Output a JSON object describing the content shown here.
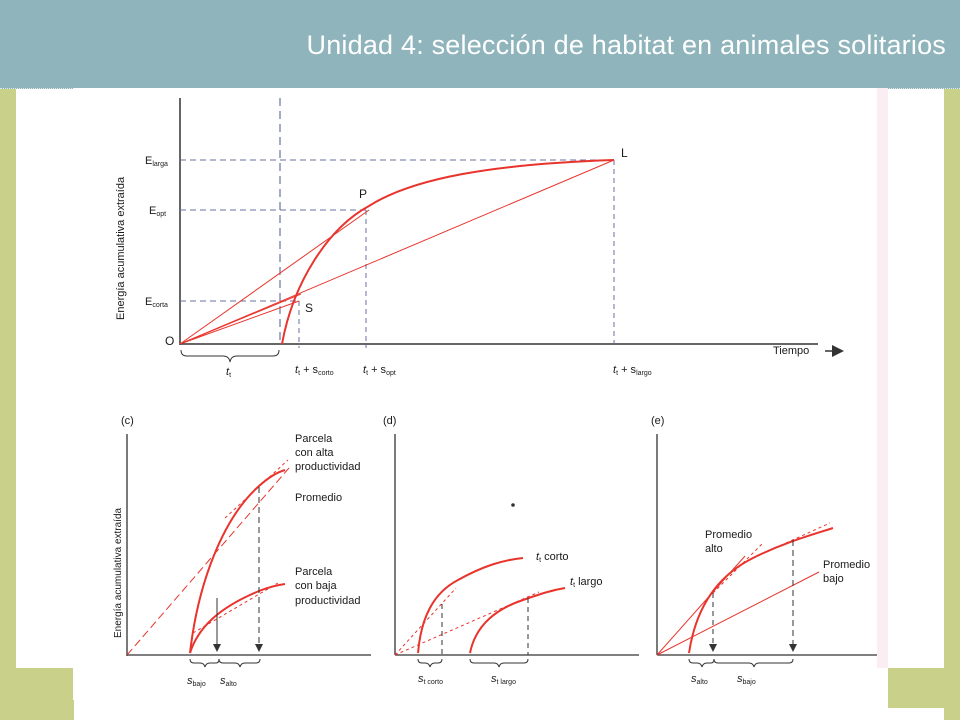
{
  "slide": {
    "title": "Unidad 4: selección de habitat en animales solitarios"
  },
  "top_graph": {
    "y_axis_label": "Energía acumulativa extraída",
    "x_axis_label": "Tiempo",
    "origin_label": "O",
    "point_labels": {
      "P": "P",
      "L": "L",
      "S": "S"
    },
    "y_ticks": [
      {
        "main": "E",
        "sub": "larga"
      },
      {
        "main": "E",
        "sub": "opt"
      },
      {
        "main": "E",
        "sub": "corta"
      }
    ],
    "x_ticks": [
      {
        "main": "t",
        "sub": "t"
      },
      {
        "main": "t",
        "sub1": "t",
        "plus": " + s",
        "sub2": "corto"
      },
      {
        "main": "t",
        "sub1": "t",
        "plus": " + s",
        "sub2": "opt"
      },
      {
        "main": "t",
        "sub1": "t",
        "plus": " + s",
        "sub2": "largo"
      }
    ]
  },
  "panel_c": {
    "letter": "(c)",
    "y_axis_label": "Energía acumulativa extraída",
    "label_high": [
      "Parcela",
      "con alta",
      "productividad"
    ],
    "label_avg": "Promedio",
    "label_low": [
      "Parcela",
      "con baja",
      "productividad"
    ],
    "s_low": {
      "main": "s",
      "sub": "bajo"
    },
    "s_high": {
      "main": "s",
      "sub": "alto"
    }
  },
  "panel_d": {
    "letter": "(d)",
    "curve_short": {
      "main": "t",
      "sub": "t",
      "rest": " corto"
    },
    "curve_long": {
      "main": "t",
      "sub": "t",
      "rest": " largo"
    },
    "s_short": {
      "main": "s",
      "sub1": "t",
      "sub2": " corto"
    },
    "s_long": {
      "main": "s",
      "sub1": "t",
      "sub2": " largo"
    }
  },
  "panel_e": {
    "letter": "(e)",
    "label_high": [
      "Promedio",
      "alto"
    ],
    "label_low": [
      "Promedio",
      "bajo"
    ],
    "s_high": {
      "main": "s",
      "sub": "alto"
    },
    "s_low": {
      "main": "s",
      "sub": "bajo"
    }
  },
  "colors": {
    "header": "#8fb4bc",
    "side_bars": "#c8d08a",
    "curve_red": "#e8342c",
    "dashed_blue": "#4a5a8a",
    "axis": "#333333"
  }
}
